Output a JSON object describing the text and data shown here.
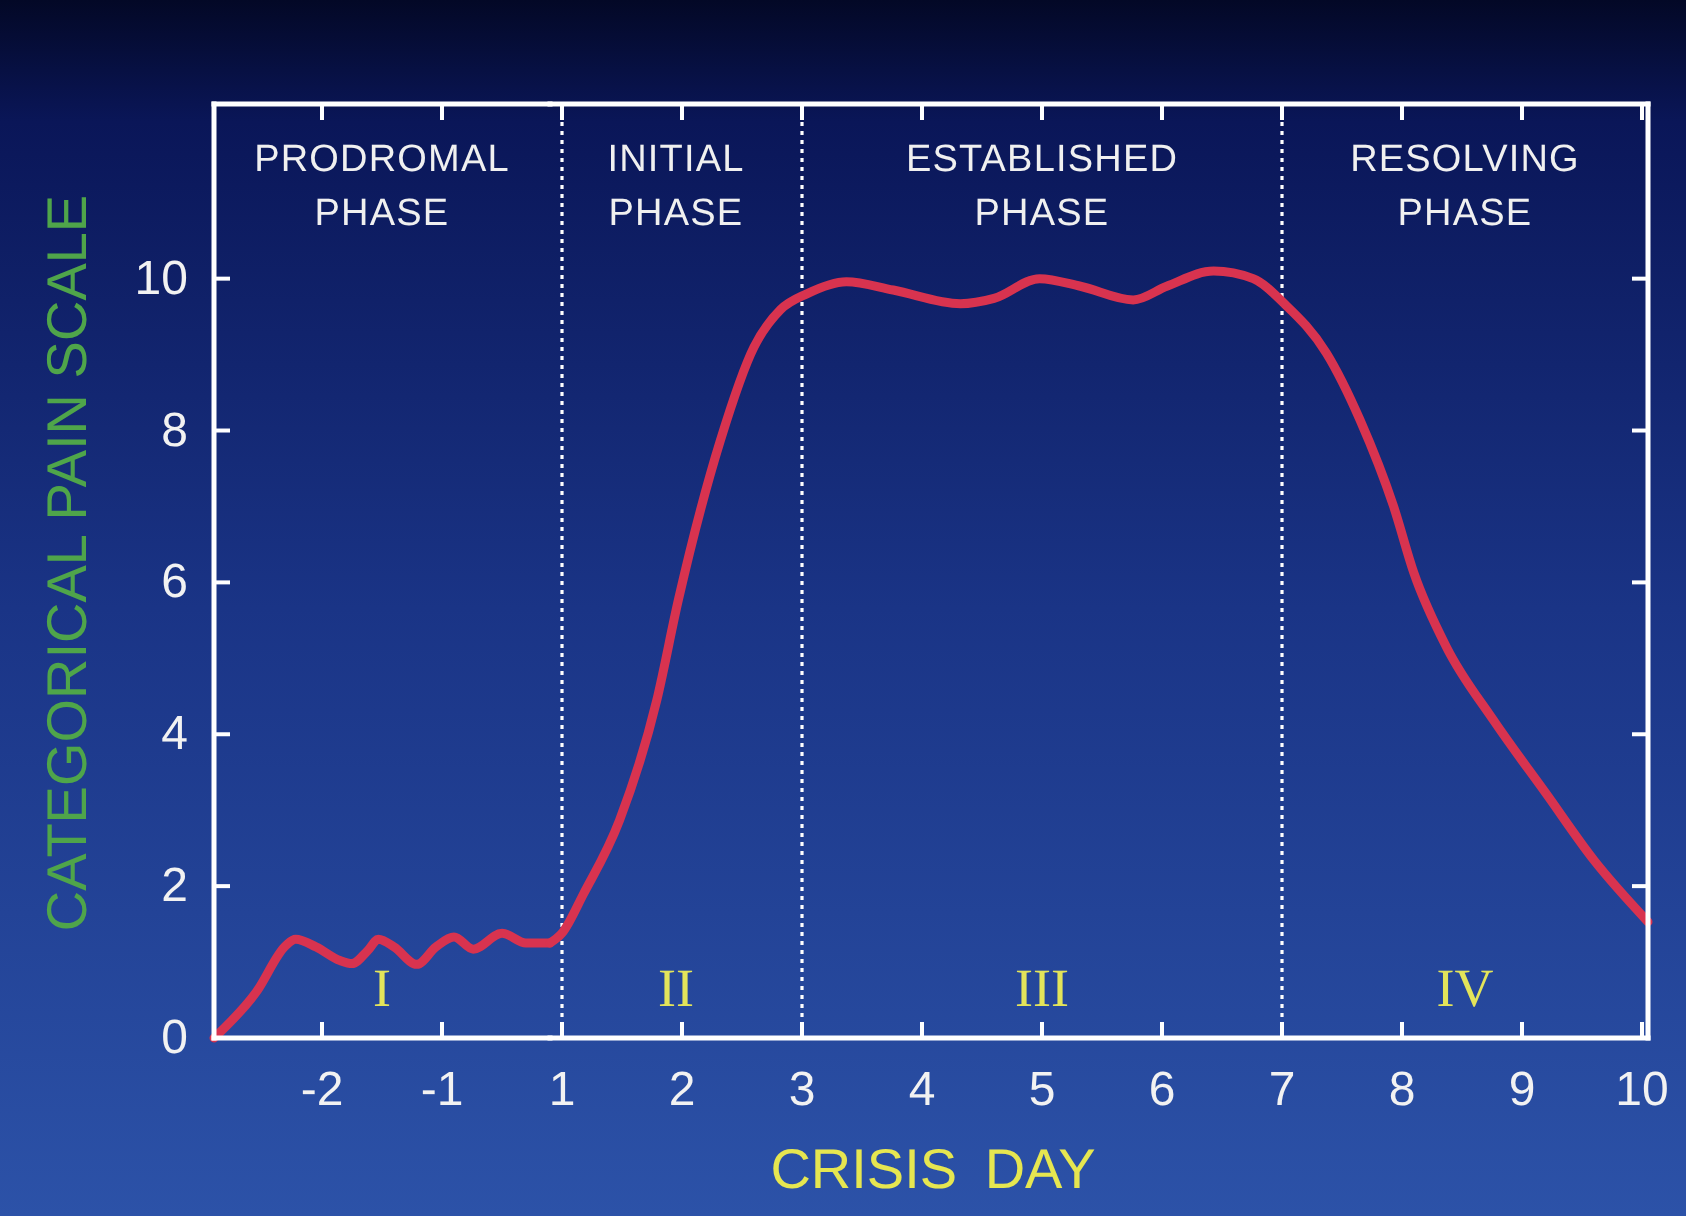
{
  "chart_data": [
    {
      "type": "line",
      "ylabel": "CATEGORICAL PAIN SCALE",
      "x": [
        -2.9,
        -2.55,
        -2.3,
        -2.22,
        -2.05,
        -1.85,
        -1.75,
        -1.62,
        -1.53,
        -1.4,
        -1.21,
        -1.05,
        -0.9,
        -0.74,
        -0.5,
        -0.3,
        -0.1
      ],
      "values": [
        0,
        0.6,
        1.22,
        1.3,
        1.2,
        1.02,
        0.98,
        1.15,
        1.3,
        1.2,
        0.97,
        1.2,
        1.33,
        1.17,
        1.38,
        1.25,
        1.25
      ],
      "color": "#d8334f",
      "xlim": [
        -2.9,
        -0.1
      ],
      "xticks": [
        -2,
        -1
      ],
      "ylim": [
        0,
        12.3
      ],
      "yticks": [
        0,
        2,
        4,
        6,
        8,
        10
      ],
      "annotations": [
        "PRODROMAL\nPHASE",
        "I"
      ]
    },
    {
      "type": "line",
      "xlabel": "CRISIS DAY",
      "x": [
        0.9,
        1,
        1.18,
        1.48,
        1.79,
        1.97,
        2.32,
        2.6,
        2.82,
        3.04,
        3.37,
        3.76,
        4.32,
        4.6,
        4.98,
        5.32,
        5.76,
        6.04,
        6.43,
        6.76,
        7.02,
        7.37,
        7.65,
        7.93,
        8.1,
        8.37,
        8.76,
        9.2,
        9.6,
        10.05
      ],
      "values": [
        1.25,
        1.38,
        1.9,
        2.87,
        4.45,
        5.77,
        7.87,
        9.1,
        9.59,
        9.8,
        9.96,
        9.85,
        9.67,
        9.74,
        10,
        9.9,
        9.72,
        9.9,
        10.1,
        10,
        9.67,
        9.02,
        8.14,
        7.0,
        6.12,
        5.15,
        4.19,
        3.22,
        2.34,
        1.53
      ],
      "color": "#d8334f",
      "xlim": [
        0.9,
        10.05
      ],
      "xticks": [
        1,
        2,
        3,
        4,
        5,
        6,
        7,
        8,
        9,
        10
      ],
      "ylim": [
        0,
        12.3
      ],
      "yticks": [
        0,
        2,
        4,
        6,
        8,
        10
      ],
      "tick_labels": "x",
      "ref_lines": [
        {
          "axis": "x",
          "value": 1,
          "color": "#ffffff",
          "line_style": "dotted"
        },
        {
          "axis": "x",
          "value": 3,
          "color": "#ffffff",
          "line_style": "dotted"
        },
        {
          "axis": "x",
          "value": 7,
          "color": "#ffffff",
          "line_style": "dotted"
        }
      ],
      "annotations": [
        "INITIAL\nPHASE",
        "ESTABLISHED\nPHASE",
        "RESOLVING\nPHASE",
        "II",
        "III",
        "IV"
      ]
    }
  ]
}
